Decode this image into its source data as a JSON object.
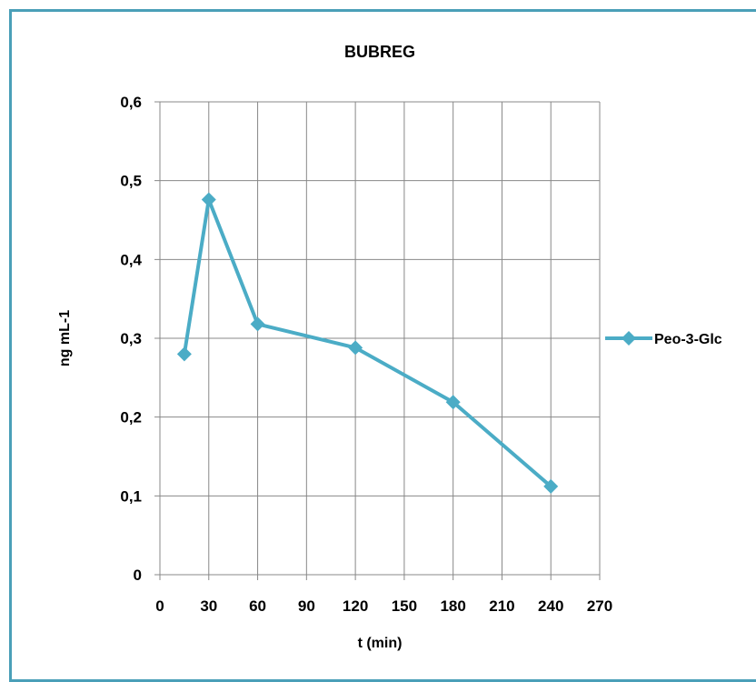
{
  "chart_data": {
    "type": "line",
    "title": "BUBREG",
    "xlabel": "t (min)",
    "ylabel": "ng mL-1",
    "xlim": [
      0,
      270
    ],
    "ylim": [
      0,
      0.6
    ],
    "x_ticks": [
      0,
      30,
      60,
      90,
      120,
      150,
      180,
      210,
      240,
      270
    ],
    "x_tick_labels": [
      "0",
      "30",
      "60",
      "90",
      "120",
      "150",
      "180",
      "210",
      "240",
      "270"
    ],
    "y_ticks": [
      0,
      0.1,
      0.2,
      0.3,
      0.4,
      0.5,
      0.6
    ],
    "y_tick_labels": [
      "0",
      "0,1",
      "0,2",
      "0,3",
      "0,4",
      "0,5",
      "0,6"
    ],
    "grid": true,
    "legend_position": "right",
    "series": [
      {
        "name": "Peo-3-Glc",
        "color": "#4bacc6",
        "marker": "diamond",
        "x": [
          15,
          30,
          60,
          120,
          180,
          240
        ],
        "y": [
          0.28,
          0.476,
          0.318,
          0.288,
          0.219,
          0.112
        ]
      }
    ]
  }
}
